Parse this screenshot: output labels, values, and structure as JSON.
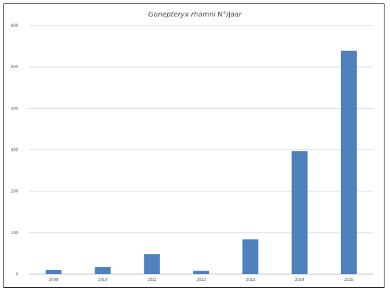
{
  "chart_data": {
    "type": "bar",
    "title_italic": "Gonepteryx rhamni",
    "title_rest": " N°/jaar",
    "categories": [
      "2009",
      "2010",
      "2011",
      "2012",
      "2013",
      "2014",
      "2015"
    ],
    "values": [
      10,
      17,
      48,
      8,
      84,
      297,
      539
    ],
    "ylim": [
      0,
      600
    ],
    "yticks": [
      0,
      100,
      200,
      300,
      400,
      500,
      600
    ],
    "grid": true,
    "legend": "none",
    "bar_color": "#4f81bd"
  }
}
